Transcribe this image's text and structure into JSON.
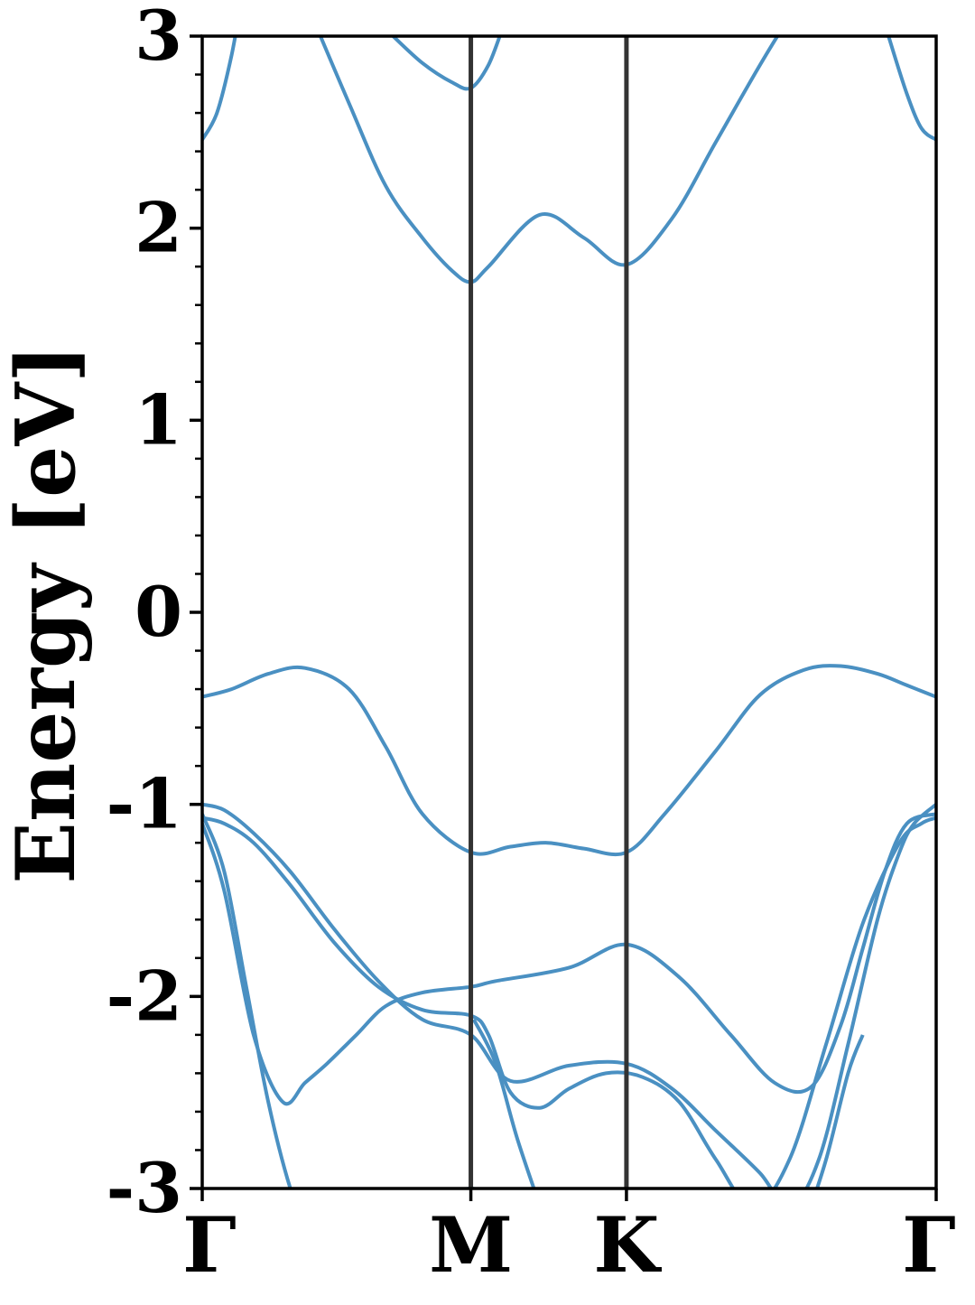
{
  "chart_data": {
    "type": "line",
    "title": "",
    "xlabel": "",
    "ylabel": "Energy [eV]",
    "ylim": [
      -3,
      3
    ],
    "y_ticks": [
      "-3",
      "-2",
      "-1",
      "0",
      "1",
      "2",
      "3"
    ],
    "x_ticks": [
      {
        "label": "Γ",
        "k": 0.0
      },
      {
        "label": "M",
        "k": 0.366
      },
      {
        "label": "K",
        "k": 0.578
      },
      {
        "label": "Γ",
        "k": 1.0
      }
    ],
    "high_symmetry_lines": [
      0.366,
      0.578
    ],
    "grid": false,
    "line_color": "#4a90c2",
    "vline_color": "#333333",
    "series": [
      {
        "name": "",
        "x": [
          0.0,
          0.02,
          0.04,
          0.06,
          0.085
        ],
        "y": [
          2.46,
          2.6,
          2.9,
          3.3,
          3.6
        ]
      },
      {
        "name": "",
        "x": [
          0.15,
          0.2,
          0.25,
          0.3,
          0.34,
          0.366,
          0.39,
          0.46,
          0.52,
          0.578,
          0.64,
          0.7,
          0.76,
          0.8,
          0.85
        ],
        "y": [
          3.1,
          2.65,
          2.22,
          1.95,
          1.78,
          1.72,
          1.8,
          2.07,
          1.95,
          1.81,
          2.05,
          2.45,
          2.85,
          3.1,
          3.4
        ]
      },
      {
        "name": "",
        "x": [
          0.26,
          0.3,
          0.34,
          0.366,
          0.39,
          0.41
        ],
        "y": [
          3.0,
          2.86,
          2.76,
          2.73,
          2.85,
          3.05
        ]
      },
      {
        "name": "",
        "x": [
          0.935,
          0.96,
          0.98,
          1.0
        ],
        "y": [
          3.0,
          2.7,
          2.52,
          2.46
        ]
      },
      {
        "name": "",
        "x": [
          0.0,
          0.04,
          0.09,
          0.14,
          0.2,
          0.25,
          0.3,
          0.366,
          0.42,
          0.47,
          0.52,
          0.578,
          0.63,
          0.7,
          0.76,
          0.82,
          0.87,
          0.92,
          0.96,
          1.0
        ],
        "y": [
          -0.44,
          -0.4,
          -0.32,
          -0.29,
          -0.4,
          -0.7,
          -1.05,
          -1.25,
          -1.22,
          -1.2,
          -1.23,
          -1.25,
          -1.05,
          -0.72,
          -0.43,
          -0.3,
          -0.28,
          -0.32,
          -0.38,
          -0.44
        ]
      },
      {
        "name": "",
        "x": [
          0.0,
          0.03,
          0.07,
          0.12,
          0.18,
          0.24,
          0.3,
          0.366,
          0.42,
          0.5,
          0.578,
          0.64,
          0.7,
          0.76,
          0.8,
          0.84,
          0.88,
          0.92,
          0.95,
          0.97,
          1.0
        ],
        "y": [
          -1.0,
          -1.03,
          -1.15,
          -1.35,
          -1.65,
          -1.92,
          -2.12,
          -2.2,
          -2.44,
          -2.36,
          -2.35,
          -2.48,
          -2.7,
          -2.92,
          -3.1,
          -2.85,
          -2.25,
          -1.6,
          -1.25,
          -1.1,
          -1.0
        ]
      },
      {
        "name": "",
        "x": [
          0.0,
          0.03,
          0.07,
          0.12,
          0.18,
          0.24,
          0.3,
          0.366,
          0.39,
          0.42,
          0.46,
          0.5,
          0.55,
          0.6,
          0.65,
          0.7,
          0.75,
          0.8,
          0.85,
          0.9,
          0.95,
          0.98,
          1.0
        ],
        "y": [
          -1.07,
          -1.1,
          -1.2,
          -1.42,
          -1.72,
          -1.95,
          -2.07,
          -2.1,
          -2.2,
          -2.5,
          -2.58,
          -2.48,
          -2.4,
          -2.42,
          -2.55,
          -2.85,
          -3.1,
          -2.85,
          -2.25,
          -1.62,
          -1.2,
          -1.1,
          -1.07
        ]
      },
      {
        "name": "",
        "x": [
          0.0,
          0.03,
          0.07,
          0.11,
          0.14,
          0.17,
          0.21,
          0.25,
          0.3,
          0.366,
          0.4,
          0.5,
          0.578,
          0.65,
          0.72,
          0.78,
          0.83,
          0.87,
          0.9,
          0.93,
          0.96,
          1.0
        ],
        "y": [
          -1.1,
          -1.45,
          -2.2,
          -2.55,
          -2.45,
          -2.35,
          -2.2,
          -2.05,
          -1.98,
          -1.95,
          -1.92,
          -1.85,
          -1.73,
          -1.9,
          -2.2,
          -2.45,
          -2.47,
          -2.15,
          -1.75,
          -1.35,
          -1.1,
          -1.05
        ]
      },
      {
        "name": "",
        "x": [
          0.0,
          0.03,
          0.06,
          0.09,
          0.12,
          0.15
        ],
        "y": [
          -1.05,
          -1.35,
          -1.95,
          -2.55,
          -3.0,
          -3.3
        ]
      },
      {
        "name": "",
        "x": [
          0.34,
          0.366,
          0.39
        ],
        "y": [
          -3.02,
          -3.0,
          -3.02
        ]
      },
      {
        "name": "",
        "x": [
          0.37,
          0.4,
          0.43,
          0.47
        ],
        "y": [
          -2.12,
          -2.35,
          -2.75,
          -3.2
        ]
      },
      {
        "name": "",
        "x": [
          0.82,
          0.85,
          0.88,
          0.9
        ],
        "y": [
          -3.2,
          -2.85,
          -2.4,
          -2.2
        ]
      }
    ]
  }
}
